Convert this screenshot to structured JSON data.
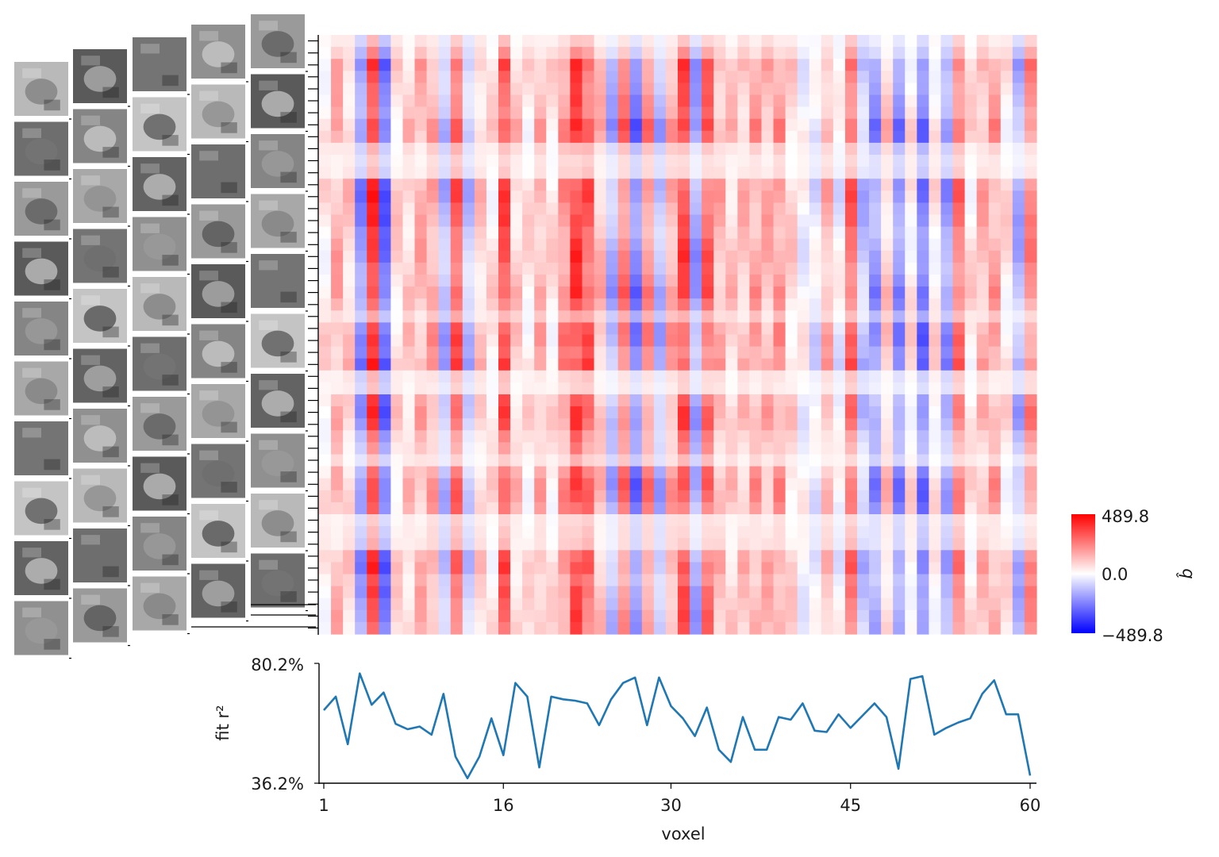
{
  "chart_data": [
    {
      "type": "heatmap",
      "n_voxels": 60,
      "n_rows": 50,
      "colorbar": {
        "max_label": "489.8",
        "mid_label": "0.0",
        "min_label": "−489.8",
        "label": "b̂",
        "vmin": -489.8,
        "vmax": 489.8,
        "colors": {
          "low": "#0000ff",
          "mid": "#ffffff",
          "high": "#ff0000"
        }
      },
      "column_pattern": [
        0.1,
        0.3,
        0.2,
        -0.45,
        0.8,
        -0.6,
        0.15,
        0.2,
        0.3,
        0.35,
        -0.3,
        0.65,
        -0.25,
        0.2,
        0.1,
        0.7,
        0.2,
        0.1,
        0.3,
        0.1,
        0.45,
        0.75,
        0.65,
        0.25,
        -0.3,
        0.5,
        -0.5,
        0.45,
        -0.3,
        0.35,
        0.7,
        -0.35,
        0.6,
        0.3,
        0.2,
        0.25,
        0.35,
        0.3,
        0.4,
        0.15,
        0.0,
        -0.1,
        0.3,
        -0.05,
        0.6,
        -0.25,
        -0.4,
        0.2,
        -0.45,
        0.1,
        -0.55,
        0.1,
        -0.4,
        0.55,
        0.1,
        0.3,
        0.35,
        0.1,
        -0.3,
        0.45
      ],
      "row_pattern": [
        0.3,
        0.55,
        1.0,
        0.9,
        0.85,
        0.9,
        0.85,
        1.1,
        1.0,
        0.4,
        0.25,
        0.3,
        0.95,
        1.0,
        0.9,
        0.95,
        0.85,
        0.95,
        1.0,
        0.9,
        0.95,
        1.05,
        0.85,
        0.5,
        0.95,
        1.0,
        0.85,
        1.0,
        0.3,
        0.25,
        0.85,
        1.0,
        0.95,
        0.7,
        0.6,
        0.35,
        0.9,
        1.05,
        1.0,
        0.85,
        0.25,
        0.3,
        0.35,
        0.85,
        0.95,
        0.75,
        0.9,
        0.85,
        0.9,
        0.85
      ]
    },
    {
      "type": "line",
      "xlabel": "voxel",
      "ylabel": "fit r²",
      "ylim": [
        36.2,
        80.2
      ],
      "y_tick_labels": [
        "80.2%",
        "36.2%"
      ],
      "x_ticks": [
        1,
        16,
        30,
        45,
        60
      ],
      "x_tick_labels": [
        "1",
        "16",
        "30",
        "45",
        "60"
      ],
      "series_color": "#1f77b4",
      "x": [
        1,
        2,
        3,
        4,
        5,
        6,
        7,
        8,
        9,
        10,
        11,
        12,
        13,
        14,
        15,
        16,
        17,
        18,
        19,
        20,
        21,
        22,
        23,
        24,
        25,
        26,
        27,
        28,
        29,
        30,
        31,
        32,
        33,
        34,
        35,
        36,
        37,
        38,
        39,
        40,
        41,
        42,
        43,
        44,
        45,
        46,
        47,
        48,
        49,
        50,
        51,
        52,
        53,
        54,
        55,
        56,
        57,
        58,
        59,
        60
      ],
      "values": [
        63,
        68,
        50.5,
        76.5,
        65,
        69.5,
        58,
        56,
        57,
        54,
        69,
        46,
        38,
        46,
        60,
        46.5,
        73,
        68,
        42,
        68,
        67,
        66.5,
        65.5,
        57.5,
        67,
        73,
        75,
        57.5,
        75,
        64.5,
        60,
        53.5,
        64,
        48.5,
        44,
        60.5,
        48.5,
        48.5,
        60.5,
        59.5,
        65.5,
        55.5,
        55,
        61.5,
        56.5,
        61,
        65.5,
        60.5,
        41.5,
        74.5,
        75.5,
        54,
        56.5,
        58.5,
        60,
        69,
        74,
        61.5,
        61.5,
        39
      ]
    }
  ],
  "image_grid": {
    "columns": [
      {
        "items": [
          "tambourine-photo",
          "disc-photo",
          "kiosk-photo",
          "gravestone-photo",
          "machine-photo",
          "driftwood-photo",
          "airliner-photo",
          "insect-photo",
          "conch-shell-photo",
          "rock-photo"
        ]
      },
      {
        "items": [
          "umbrella-photo",
          "box-photo",
          "mandolin-photo",
          "hammock-photo",
          "guitarist-photo",
          "canoe-photo",
          "boat-photo",
          "butterfly-photo",
          "crab-photo",
          "owl-photo"
        ]
      },
      {
        "items": [
          "stove-photo",
          "snowmobile-photo",
          "kitchen-photo",
          "harp-photo",
          "extinguisher-photo",
          "case-photo",
          "mug-photo",
          "deer-photo",
          "orca-photo",
          "lizard-photo"
        ]
      },
      {
        "items": [
          "washer-photo",
          "wall-photo",
          "robot-photo",
          "ipods-photo",
          "helmet-photo",
          "wagon-photo",
          "ornament-photo",
          "animals-photo",
          "leopard-photo",
          "bird-grass-photo"
        ]
      },
      {
        "items": [
          "welding-mask-photo",
          "stained-glass-photo",
          "tools-photo",
          "door-photo",
          "piano-photo",
          "cowboy-photo",
          "bulldozer-photo",
          "llama-photo",
          "bat-photo",
          "duck-photo"
        ]
      }
    ]
  }
}
